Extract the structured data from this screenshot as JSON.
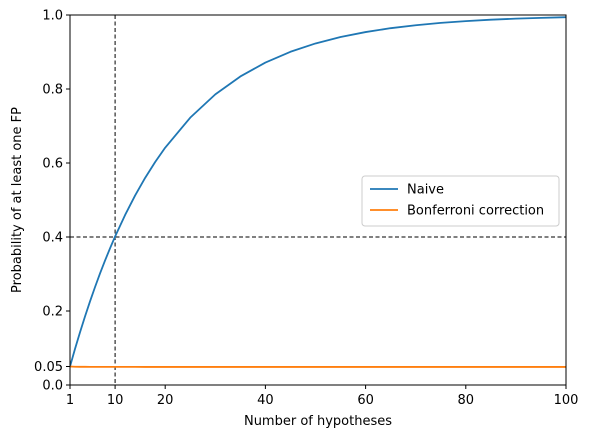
{
  "chart_data": {
    "type": "line",
    "title": "",
    "xlabel": "Number of hypotheses",
    "ylabel": "Probability of at least one FP",
    "xlim": [
      1,
      100
    ],
    "ylim": [
      0,
      1.0
    ],
    "xticks": [
      1,
      10,
      20,
      40,
      60,
      80,
      100
    ],
    "yticks": [
      0.0,
      0.05,
      0.2,
      0.4,
      0.6,
      0.8,
      1.0
    ],
    "ytick_labels": [
      "0.0",
      "0.05",
      "0.2",
      "0.4",
      "0.6",
      "0.8",
      "1.0"
    ],
    "alpha": 0.05,
    "x": [
      1,
      2,
      3,
      4,
      5,
      6,
      7,
      8,
      9,
      10,
      12,
      14,
      16,
      18,
      20,
      25,
      30,
      35,
      40,
      45,
      50,
      55,
      60,
      65,
      70,
      75,
      80,
      85,
      90,
      95,
      100
    ],
    "series": [
      {
        "name": "Naive",
        "color": "#1f77b4",
        "values": [
          0.05,
          0.0975,
          0.1426,
          0.1855,
          0.2262,
          0.2649,
          0.3017,
          0.3366,
          0.3698,
          0.4013,
          0.4596,
          0.5123,
          0.5599,
          0.6028,
          0.6415,
          0.7226,
          0.7854,
          0.8339,
          0.8715,
          0.9006,
          0.9231,
          0.9405,
          0.9539,
          0.9644,
          0.9724,
          0.9787,
          0.9835,
          0.9873,
          0.9901,
          0.9923,
          0.9941
        ]
      },
      {
        "name": "Bonferroni correction",
        "color": "#ff7f0e",
        "values": [
          0.05,
          0.0494,
          0.0492,
          0.0491,
          0.049,
          0.049,
          0.049,
          0.0489,
          0.0489,
          0.0489,
          0.0489,
          0.0489,
          0.0488,
          0.0488,
          0.0488,
          0.0488,
          0.0488,
          0.0488,
          0.0488,
          0.0488,
          0.0488,
          0.0488,
          0.0488,
          0.0488,
          0.0488,
          0.0488,
          0.0488,
          0.0488,
          0.0488,
          0.0488,
          0.0488
        ]
      }
    ],
    "reference_lines": [
      {
        "orientation": "vertical",
        "value": 10,
        "style": "dashed",
        "color": "#000000"
      },
      {
        "orientation": "horizontal",
        "value": 0.4,
        "style": "dashed",
        "color": "#000000"
      }
    ],
    "legend_position": "center-right",
    "grid": false
  }
}
